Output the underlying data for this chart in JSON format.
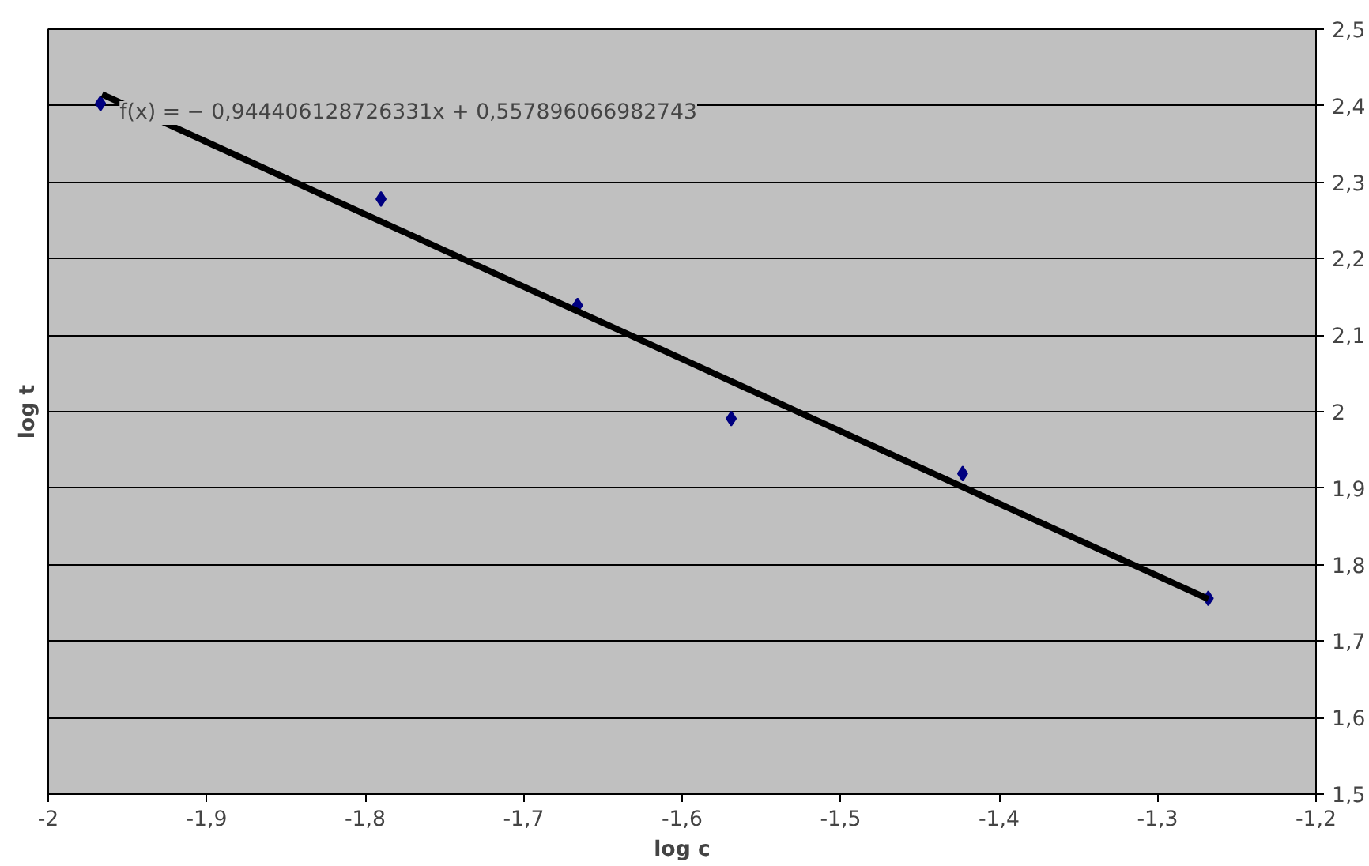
{
  "chart_data": {
    "type": "scatter",
    "xlabel": "log c",
    "ylabel": "log t",
    "annotations": [
      "f(x) = − 0,944406128726331x + 0,557896066982743"
    ],
    "series": [
      {
        "color": "#000080",
        "marker": "diamond",
        "x": [
          -1.967,
          -1.79,
          -1.666,
          -1.569,
          -1.423,
          -1.268
        ],
        "values": [
          2.403,
          2.278,
          2.139,
          1.991,
          1.919,
          1.756
        ]
      },
      {
        "type": "line",
        "color": "#000000",
        "marker": "none",
        "line_style": "solid",
        "x": [
          -1.966,
          -1.268
        ],
        "values": [
          2.415,
          1.755
        ]
      }
    ],
    "xlim": [
      -2,
      -1.2
    ],
    "ylim": [
      1.5,
      2.5
    ],
    "xticks": [
      -2,
      {
        "value": -1.9,
        "label": "-1,9"
      },
      {
        "value": -1.8,
        "label": "-1,8"
      },
      {
        "value": -1.7,
        "label": "-1,7"
      },
      {
        "value": -1.6,
        "label": "-1,6"
      },
      {
        "value": -1.5,
        "label": "-1,5"
      },
      {
        "value": -1.4,
        "label": "-1,4"
      },
      {
        "value": -1.3,
        "label": "-1,3"
      },
      {
        "value": -1.2,
        "label": "-1,2"
      }
    ],
    "yticks": [
      {
        "value": 1.5,
        "label": "1,5"
      },
      {
        "value": 1.6,
        "label": "1,6"
      },
      {
        "value": 1.7,
        "label": "1,7"
      },
      {
        "value": 1.8,
        "label": "1,8"
      },
      {
        "value": 1.9,
        "label": "1,9"
      },
      2,
      {
        "value": 2.1,
        "label": "2,1"
      },
      {
        "value": 2.2,
        "label": "2,2"
      },
      {
        "value": 2.3,
        "label": "2,3"
      },
      {
        "value": 2.4,
        "label": "2,4"
      },
      {
        "value": 2.5,
        "label": "2,5"
      }
    ],
    "grid": "y"
  }
}
